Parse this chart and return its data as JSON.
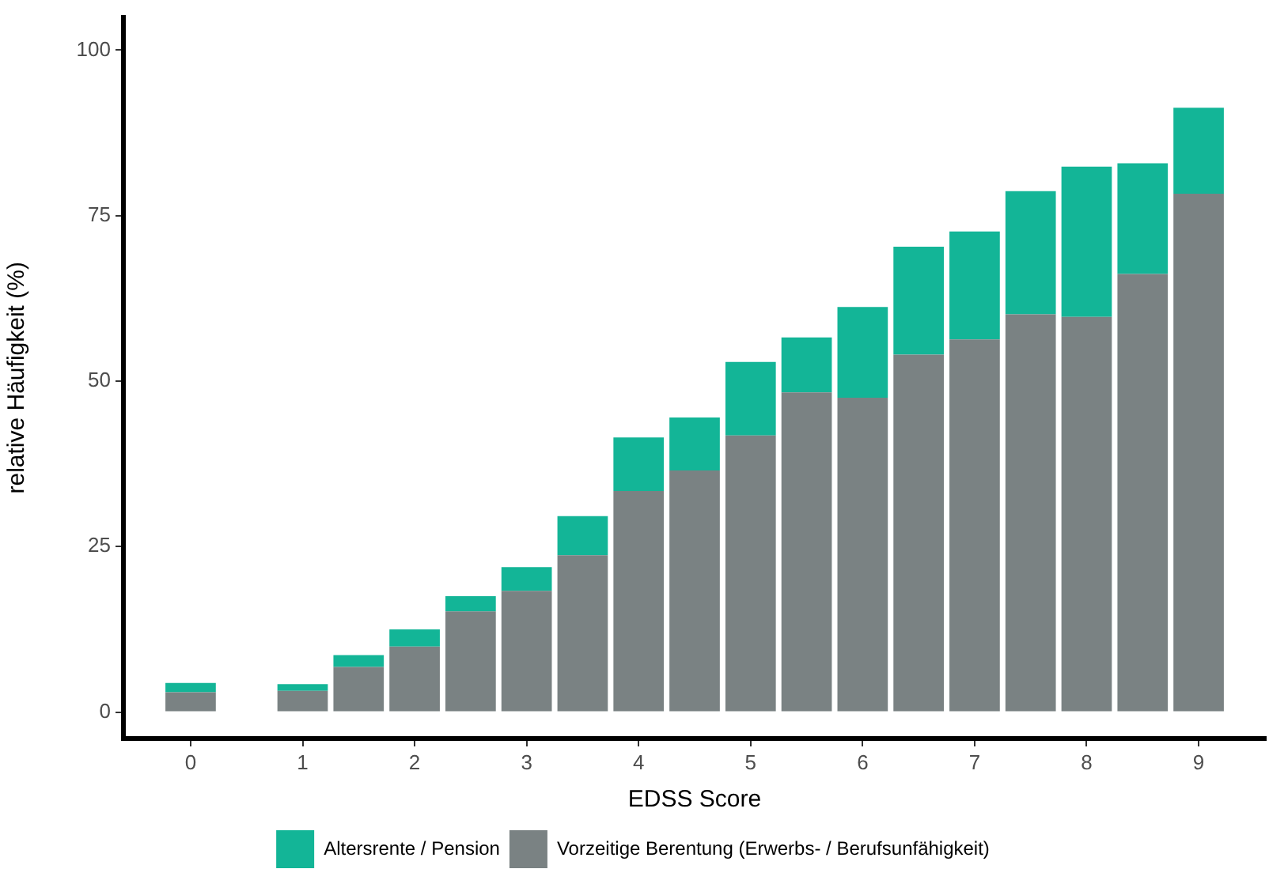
{
  "chart_data": {
    "type": "bar",
    "xlabel": "EDSS Score",
    "ylabel": "relative Häufigkeit (%)",
    "x": [
      0,
      1,
      1.5,
      2,
      2.5,
      3,
      3.5,
      4,
      4.5,
      5,
      5.5,
      6,
      6.5,
      7,
      7.5,
      8,
      8.5,
      9
    ],
    "stacked": true,
    "series": [
      {
        "name": "Vorzeitige Berentung (Erwerbs- / Berufsunfähigkeit)",
        "color": "#7a8283",
        "values": [
          3.0,
          3.2,
          6.8,
          9.9,
          15.2,
          18.3,
          23.7,
          33.4,
          36.5,
          41.8,
          48.3,
          47.5,
          54.0,
          56.3,
          60.1,
          59.7,
          66.2,
          78.3
        ]
      },
      {
        "name": "Altersrente / Pension",
        "color": "#13b597",
        "values": [
          1.4,
          1.0,
          1.8,
          2.6,
          2.3,
          3.6,
          5.9,
          8.1,
          8.0,
          11.1,
          8.3,
          13.7,
          16.3,
          16.3,
          18.6,
          22.7,
          16.7,
          13.0
        ]
      }
    ],
    "xlim": [
      -0.6,
      9.6
    ],
    "xticks": [
      0,
      1,
      2,
      3,
      4,
      5,
      6,
      7,
      8,
      9
    ],
    "ylim": [
      -4,
      105
    ],
    "yticks": [
      0,
      25,
      50,
      75,
      100
    ],
    "grid": false,
    "legend": "bottom"
  }
}
